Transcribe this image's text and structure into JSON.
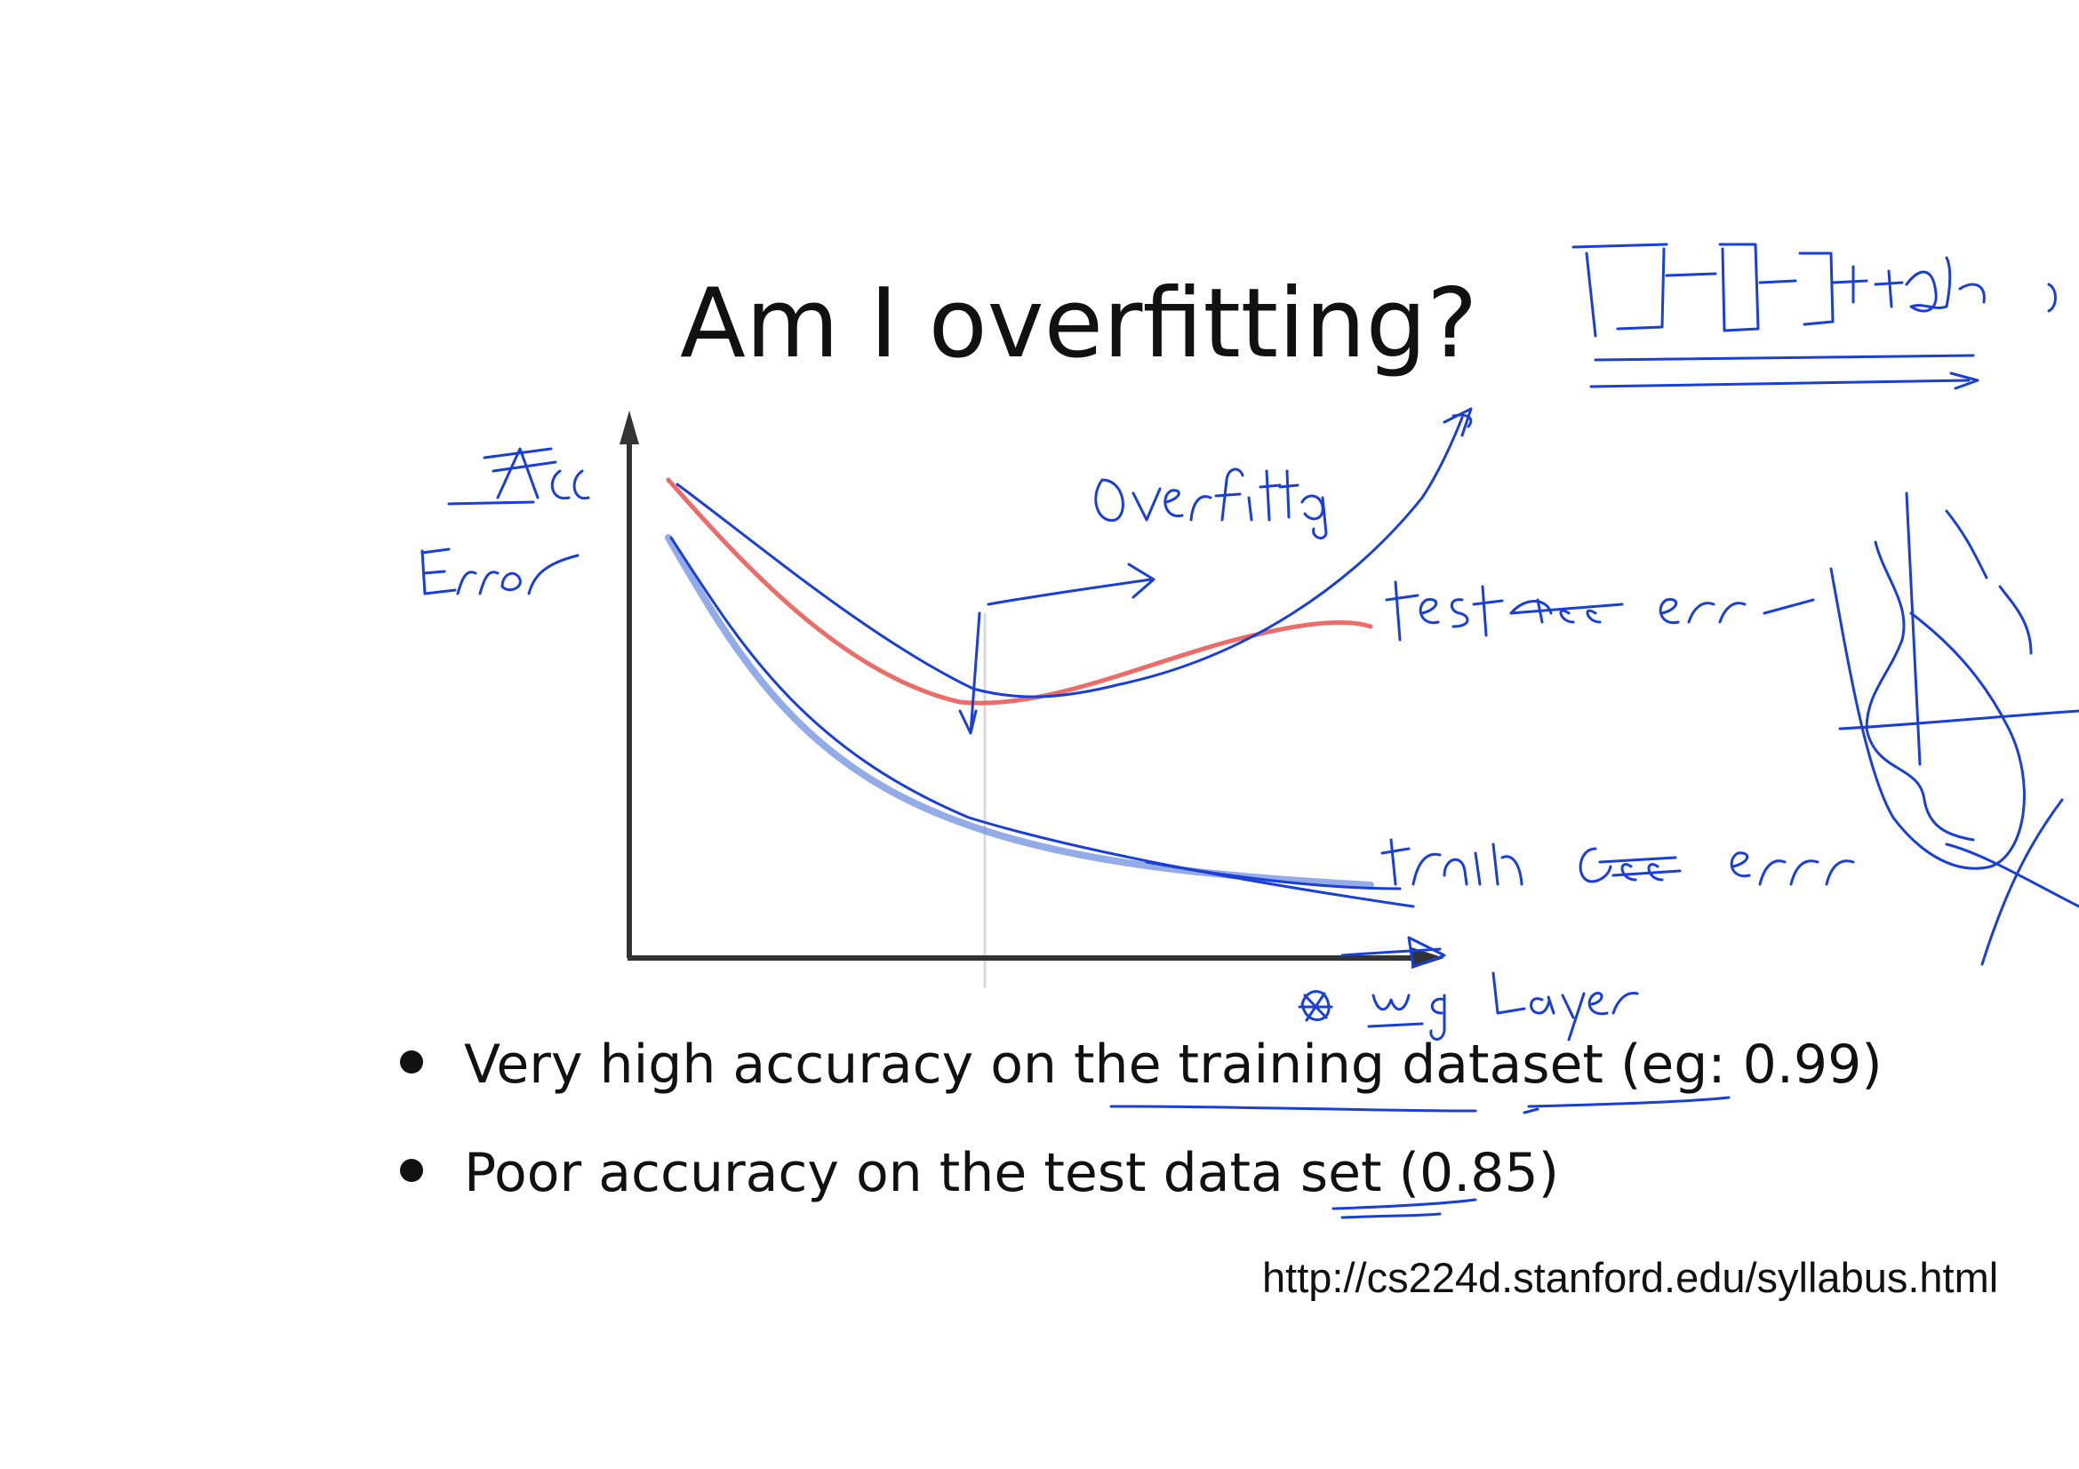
{
  "slide": {
    "title": "Am I overfitting?",
    "bullets": [
      "Very high accuracy on the training dataset (eg: 0.99)",
      "Poor accuracy on the test data set (0.85)"
    ],
    "source_url": "http://cs224d.stanford.edu/syllabus.html"
  },
  "chart_data": {
    "type": "line",
    "xlabel": "",
    "ylabel": "",
    "series": [
      {
        "color": "#e8534f"
      },
      {
        "color": "#4f7bd9"
      }
    ],
    "grid": false
  },
  "annotations": {
    "ink_color": "#1a3fd6",
    "handwritten_text": [
      "Acc",
      "Error",
      "overfitting",
      "test acc err",
      "train acc err",
      "Layer"
    ]
  }
}
